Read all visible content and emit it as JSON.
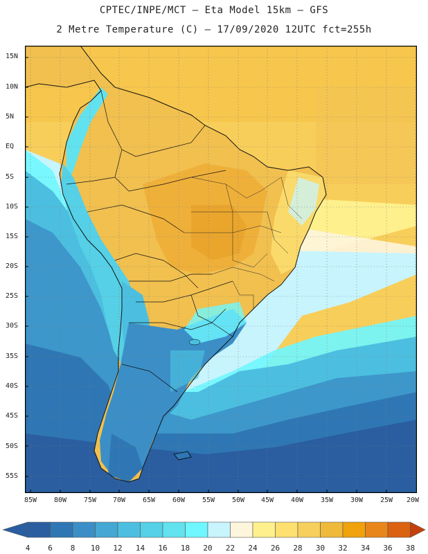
{
  "header": {
    "line1": "CPTEC/INPE/MCT —  Eta Model 15km — GFS",
    "line2": "2 Metre Temperature (C) — 17/09/2020 12UTC fct=255h"
  },
  "map": {
    "lat_labels": [
      "15N",
      "10N",
      "5N",
      "EQ",
      "5S",
      "10S",
      "15S",
      "20S",
      "25S",
      "30S",
      "35S",
      "40S",
      "45S",
      "50S",
      "55S"
    ],
    "lon_labels": [
      "85W",
      "80W",
      "75W",
      "70W",
      "65W",
      "60W",
      "55W",
      "50W",
      "45W",
      "40W",
      "35W",
      "30W",
      "25W",
      "20W"
    ]
  },
  "legend": {
    "labels": [
      "4",
      "6",
      "8",
      "10",
      "12",
      "14",
      "16",
      "18",
      "20",
      "22",
      "24",
      "26",
      "28",
      "30",
      "32",
      "34",
      "36",
      "38"
    ],
    "colors": [
      "#2a5ea0",
      "#2f77b4",
      "#3b8fc6",
      "#44a8d2",
      "#4cbfe0",
      "#56d0e6",
      "#62e2ee",
      "#6ff7ff",
      "#c8f4fd",
      "#fef5dd",
      "#fef08c",
      "#fde070",
      "#f6cf5c",
      "#efb93a",
      "#f0a20c",
      "#e9861b",
      "#da6210",
      "#c53f0a"
    ]
  }
}
